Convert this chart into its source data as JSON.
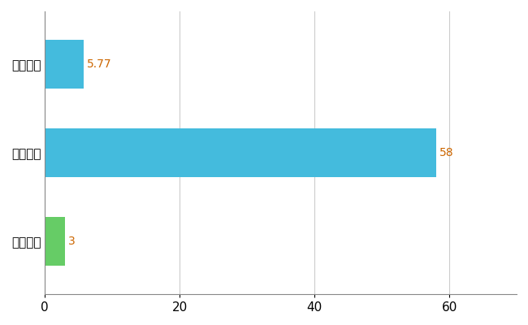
{
  "categories": [
    "鹿児島県",
    "全国最大",
    "全国平均"
  ],
  "values": [
    3,
    58,
    5.77
  ],
  "bar_colors": [
    "#66cc66",
    "#44bbdd",
    "#44bbdd"
  ],
  "value_labels": [
    "3",
    "58",
    "5.77"
  ],
  "xlim": [
    0,
    70
  ],
  "xticks": [
    0,
    20,
    40,
    60
  ],
  "background_color": "#ffffff",
  "grid_color": "#cccccc",
  "bar_height": 0.55,
  "label_color": "#cc6600",
  "label_fontsize": 10,
  "tick_label_fontsize": 11,
  "figsize": [
    6.5,
    4.0
  ],
  "dpi": 100
}
